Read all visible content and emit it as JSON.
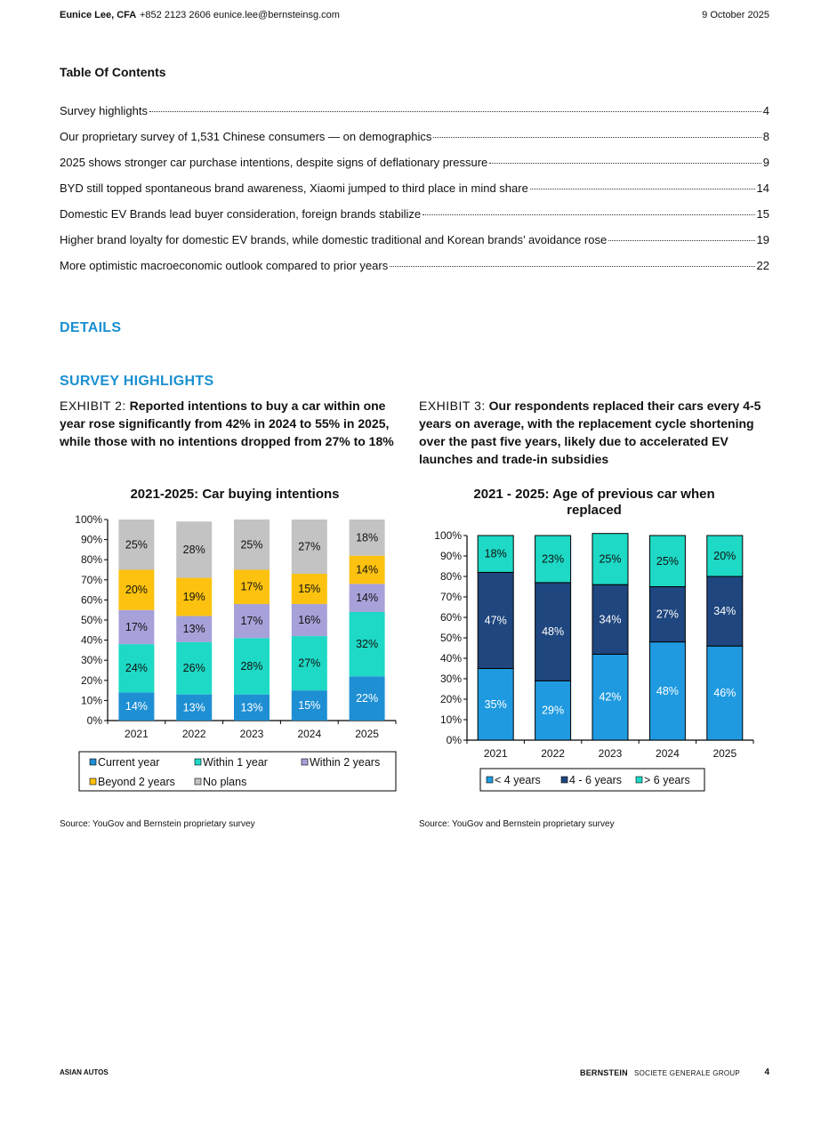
{
  "header": {
    "author": "Eunice Lee, CFA",
    "contact": "+852 2123 2606  eunice.lee@bernsteinsg.com",
    "date": "9 October 2025"
  },
  "toc": {
    "title": "Table Of Contents",
    "entries": [
      {
        "text": "Survey highlights",
        "page": "4"
      },
      {
        "text": "Our proprietary survey of 1,531 Chinese consumers — on demographics",
        "page": "8"
      },
      {
        "text": "2025 shows stronger car purchase intentions, despite signs of deflationary pressure",
        "page": "9"
      },
      {
        "text": "BYD still topped spontaneous brand awareness, Xiaomi jumped to third place in mind share",
        "page": "14"
      },
      {
        "text": "Domestic EV Brands lead buyer consideration, foreign brands stabilize",
        "page": "15"
      },
      {
        "text": "Higher brand loyalty for domestic EV brands, while domestic traditional and Korean brands’ avoidance rose",
        "page": "19"
      },
      {
        "text": "More optimistic macroeconomic outlook compared to prior years",
        "page": "22"
      }
    ]
  },
  "sections": {
    "details": "DETAILS",
    "highlights": "SURVEY HIGHLIGHTS"
  },
  "exhibits": [
    {
      "label": "EXHIBIT 2:",
      "title": "Reported intentions to buy a car within one year rose significantly from 42% in 2024 to 55% in 2025, while those with no intentions dropped from 27% to 18%",
      "source": "Source: YouGov and Bernstein proprietary survey"
    },
    {
      "label": "EXHIBIT 3:",
      "title": "Our respondents replaced their cars every 4-5 years on average, with the replacement cycle shortening over the past five years, likely due to accelerated EV launches and trade-in subsidies",
      "source": "Source: YouGov and Bernstein proprietary survey"
    }
  ],
  "chart_data": [
    {
      "type": "bar",
      "stacked": true,
      "title": "2021-2025: Car buying intentions",
      "categories": [
        "2021",
        "2022",
        "2023",
        "2024",
        "2025"
      ],
      "ylim": [
        0,
        100
      ],
      "yticks": [
        "0%",
        "10%",
        "20%",
        "30%",
        "40%",
        "50%",
        "60%",
        "70%",
        "80%",
        "90%",
        "100%"
      ],
      "legend_position": "bottom",
      "series": [
        {
          "name": "Current year",
          "color": "#1f8fd3",
          "values": [
            14,
            13,
            13,
            15,
            22
          ],
          "labels": [
            "14%",
            "13%",
            "13%",
            "15%",
            "22%"
          ]
        },
        {
          "name": "Within 1 year",
          "color": "#1dd9c5",
          "values": [
            24,
            26,
            28,
            27,
            32
          ],
          "labels": [
            "24%",
            "26%",
            "28%",
            "27%",
            "32%"
          ]
        },
        {
          "name": "Within 2 years",
          "color": "#a7a1d9",
          "values": [
            17,
            13,
            17,
            16,
            14
          ],
          "labels": [
            "17%",
            "13%",
            "17%",
            "16%",
            "14%"
          ]
        },
        {
          "name": "Beyond 2 years",
          "color": "#fcc20f",
          "values": [
            20,
            19,
            17,
            15,
            14
          ],
          "labels": [
            "20%",
            "19%",
            "17%",
            "15%",
            "14%"
          ]
        },
        {
          "name": "No plans",
          "color": "#c3c3c3",
          "values": [
            25,
            28,
            25,
            27,
            18
          ],
          "labels": [
            "25%",
            "28%",
            "25%",
            "27%",
            "18%"
          ]
        }
      ]
    },
    {
      "type": "bar",
      "stacked": true,
      "title": "2021 - 2025: Age of previous car when replaced",
      "categories": [
        "2021",
        "2022",
        "2023",
        "2024",
        "2025"
      ],
      "ylim": [
        0,
        100
      ],
      "yticks": [
        "0%",
        "10%",
        "20%",
        "30%",
        "40%",
        "50%",
        "60%",
        "70%",
        "80%",
        "90%",
        "100%"
      ],
      "legend_position": "bottom",
      "series": [
        {
          "name": "< 4 years",
          "color": "#1f9ae0",
          "values": [
            35,
            29,
            42,
            48,
            46
          ],
          "labels": [
            "35%",
            "29%",
            "42%",
            "48%",
            "46%"
          ]
        },
        {
          "name": "4 - 6 years",
          "color": "#1f467e",
          "values": [
            47,
            48,
            34,
            27,
            34
          ],
          "labels": [
            "47%",
            "48%",
            "34%",
            "27%",
            "34%"
          ]
        },
        {
          "name": "> 6 years",
          "color": "#1dd9c5",
          "values": [
            18,
            23,
            25,
            25,
            20
          ],
          "labels": [
            "18%",
            "23%",
            "25%",
            "25%",
            "20%"
          ]
        }
      ]
    }
  ],
  "footer": {
    "section": "ASIAN AUTOS",
    "brand": "BERNSTEIN",
    "group": "SOCIETE GENERALE GROUP",
    "page": "4"
  }
}
